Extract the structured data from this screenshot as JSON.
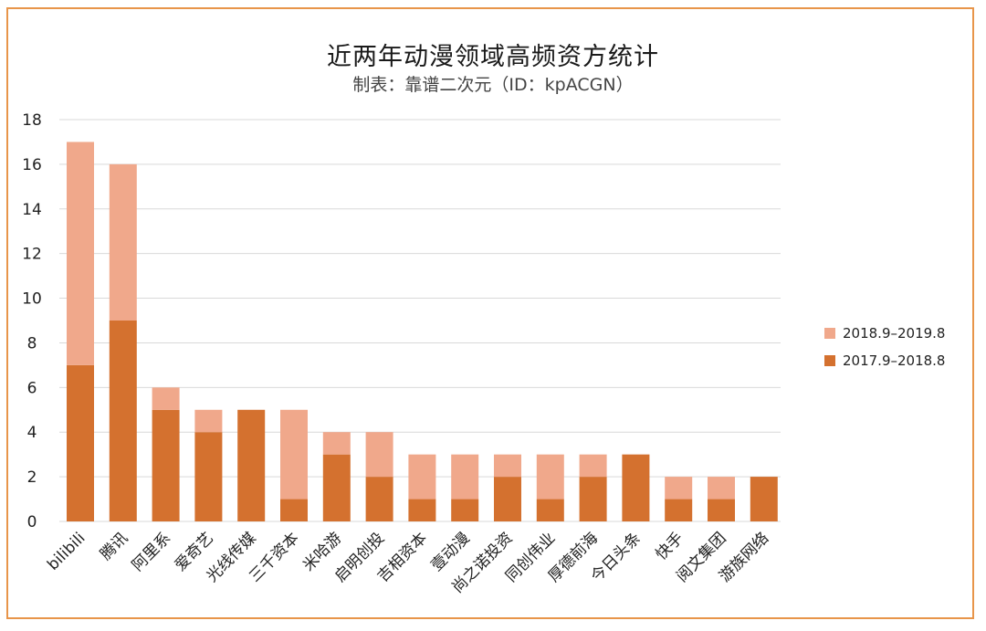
{
  "chart_data": {
    "type": "bar",
    "stacked": true,
    "title": "近两年动漫领域高频资方统计",
    "subtitle": "制表：靠谱二次元（ID：kpACGN）",
    "categories": [
      "bilibili",
      "腾讯",
      "阿里系",
      "爱奇艺",
      "光线传媒",
      "三千资本",
      "米哈游",
      "启明创投",
      "吉相资本",
      "壹动漫",
      "尚之诺投资",
      "同创伟业",
      "厚德前海",
      "今日头条",
      "快手",
      "阅文集团",
      "游族网络"
    ],
    "series": [
      {
        "name": "2017.9–2018.8",
        "color": "#d4712f",
        "values": [
          7,
          9,
          5,
          4,
          5,
          1,
          3,
          2,
          1,
          1,
          2,
          1,
          2,
          3,
          1,
          1,
          2
        ]
      },
      {
        "name": "2018.9–2019.8",
        "color": "#f0a88b",
        "values": [
          10,
          7,
          1,
          1,
          0,
          4,
          1,
          2,
          2,
          2,
          1,
          2,
          1,
          0,
          1,
          1,
          0
        ]
      }
    ],
    "legend": [
      "2018.9–2019.8",
      "2017.9–2018.8"
    ],
    "ylim": [
      0,
      18
    ],
    "yticks": [
      0,
      2,
      4,
      6,
      8,
      10,
      12,
      14,
      16,
      18
    ],
    "grid": true,
    "legend_position": "right",
    "xlabel": "",
    "ylabel": ""
  },
  "colors": {
    "border": "#e8954a",
    "grid": "#d9d9d9",
    "series_2017": "#d4712f",
    "series_2018": "#f0a88b"
  }
}
